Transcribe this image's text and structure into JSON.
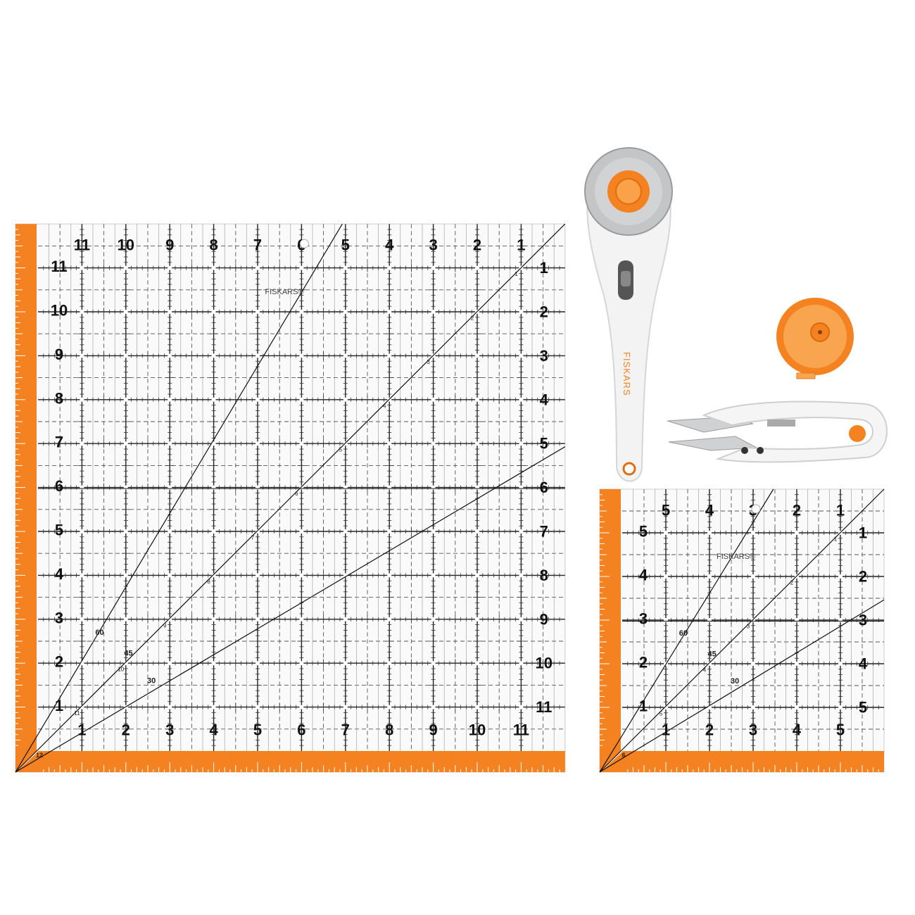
{
  "brand": "FISKARS",
  "brand_mark": "®",
  "colors": {
    "orange": "#F58220",
    "orange_light": "#F9A24A",
    "grid": "#222222",
    "handle": "#F4F4F4",
    "blade": "#BFC0C2"
  },
  "rulers": [
    {
      "name": "12-inch-square-ruler",
      "size_in": 12,
      "corner_label": "12",
      "top_labels": [
        "11",
        "10",
        "9",
        "8",
        "7",
        "6",
        "5",
        "4",
        "3",
        "2",
        "1"
      ],
      "right_labels": [
        "1",
        "2",
        "3",
        "4",
        "5",
        "6",
        "7",
        "8",
        "9",
        "10",
        "11"
      ],
      "left_labels": [
        "1",
        "2",
        "3",
        "4",
        "5",
        "6",
        "7",
        "8",
        "9",
        "10",
        "11"
      ],
      "bottom_labels": [
        "1",
        "2",
        "3",
        "4",
        "5",
        "6",
        "7",
        "8",
        "9",
        "10",
        "11"
      ],
      "angle_labels": [
        "60",
        "45",
        "30"
      ]
    },
    {
      "name": "6-inch-square-ruler",
      "size_in": 6,
      "corner_label": "6",
      "top_labels": [
        "5",
        "4",
        "3",
        "2",
        "1"
      ],
      "right_labels": [
        "1",
        "2",
        "3",
        "4",
        "5"
      ],
      "left_labels": [
        "1",
        "2",
        "3",
        "4",
        "5"
      ],
      "bottom_labels": [
        "1",
        "2",
        "3",
        "4",
        "5"
      ],
      "angle_labels": [
        "60",
        "45",
        "30"
      ]
    }
  ],
  "tools": {
    "rotary_cutter": {
      "brand": "FISKARS"
    },
    "tape_measure": {},
    "thread_snips": {}
  }
}
